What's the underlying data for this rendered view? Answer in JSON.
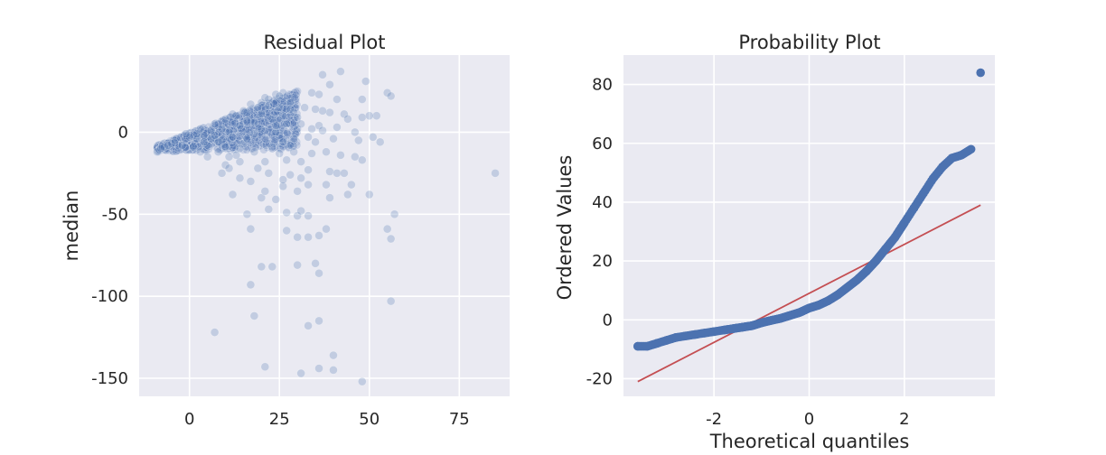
{
  "chart_data": [
    {
      "type": "scatter",
      "title": "Residual Plot",
      "xlabel": "",
      "ylabel": "median",
      "xlim": [
        -14,
        89
      ],
      "ylim": [
        -161,
        47
      ],
      "xticks": [
        0,
        25,
        50,
        75
      ],
      "yticks": [
        0,
        -50,
        -100,
        -150
      ],
      "xtick_labels": [
        "0",
        "25",
        "50",
        "75"
      ],
      "ytick_labels": [
        "0",
        "-50",
        "-100",
        "-150"
      ],
      "grid": true,
      "marker_color": "#4c72b0",
      "marker_alpha": 0.25,
      "dense_cloud": {
        "x_range": [
          -9,
          30
        ],
        "y_center": "0 to 25",
        "note_points_shown": 0
      },
      "points": [
        [
          85,
          -25
        ],
        [
          56,
          -103
        ],
        [
          57,
          -50
        ],
        [
          55,
          -59
        ],
        [
          56,
          -65
        ],
        [
          48,
          -152
        ],
        [
          40,
          -145
        ],
        [
          36,
          -144
        ],
        [
          31,
          -147
        ],
        [
          21,
          -143
        ],
        [
          7,
          -122
        ],
        [
          18,
          -112
        ],
        [
          33,
          -118
        ],
        [
          36,
          -115
        ],
        [
          40,
          -136
        ],
        [
          17,
          -93
        ],
        [
          20,
          -82
        ],
        [
          23,
          -82
        ],
        [
          30,
          -81
        ],
        [
          35,
          -80
        ],
        [
          36,
          -86
        ],
        [
          27,
          -60
        ],
        [
          30,
          -64
        ],
        [
          33,
          -64
        ],
        [
          36,
          -63
        ],
        [
          38,
          -59
        ],
        [
          17,
          -59
        ],
        [
          27,
          -49
        ],
        [
          30,
          -51
        ],
        [
          33,
          -51
        ],
        [
          31,
          -48
        ],
        [
          22,
          -47
        ],
        [
          16,
          -50
        ],
        [
          39,
          -40
        ],
        [
          45,
          -32
        ],
        [
          44,
          -38
        ],
        [
          50,
          -38
        ],
        [
          39,
          -24
        ],
        [
          41,
          -25
        ],
        [
          43,
          -25
        ],
        [
          48,
          -17
        ],
        [
          52,
          10
        ],
        [
          48,
          9
        ],
        [
          50,
          10
        ],
        [
          43,
          11
        ],
        [
          53,
          -6
        ],
        [
          51,
          -3
        ],
        [
          47,
          -5
        ],
        [
          55,
          24
        ],
        [
          56,
          22
        ],
        [
          49,
          31
        ],
        [
          48,
          20
        ],
        [
          42,
          37
        ],
        [
          37,
          35
        ],
        [
          34,
          24
        ],
        [
          36,
          23
        ],
        [
          39,
          29
        ],
        [
          41,
          20
        ],
        [
          39,
          12
        ],
        [
          37,
          13
        ],
        [
          35,
          14
        ],
        [
          36,
          4
        ],
        [
          40,
          -4
        ],
        [
          46,
          0
        ],
        [
          46,
          -15
        ],
        [
          34,
          -13
        ],
        [
          33,
          -23
        ],
        [
          30,
          -36
        ],
        [
          26,
          -33
        ],
        [
          26,
          -29
        ],
        [
          28,
          -26
        ],
        [
          31,
          -28
        ],
        [
          33,
          -32
        ],
        [
          38,
          -32
        ],
        [
          20,
          -40
        ],
        [
          21,
          -36
        ],
        [
          24,
          -41
        ],
        [
          12,
          -38
        ],
        [
          14,
          -28
        ],
        [
          17,
          -30
        ],
        [
          10,
          -20
        ],
        [
          9,
          -25
        ],
        [
          11,
          -22
        ],
        [
          14,
          -18
        ],
        [
          5,
          -15
        ],
        [
          3,
          -12
        ],
        [
          1,
          -9
        ],
        [
          -2,
          -8
        ],
        [
          -5,
          -7
        ],
        [
          -7,
          -9
        ],
        [
          -9,
          -12
        ],
        [
          -8,
          -10
        ],
        [
          -4,
          -5
        ],
        [
          -6,
          -8
        ],
        [
          20,
          18
        ],
        [
          22,
          20
        ],
        [
          24,
          23
        ],
        [
          26,
          24
        ],
        [
          25,
          15
        ],
        [
          28,
          18
        ],
        [
          29,
          12
        ],
        [
          30,
          9
        ],
        [
          27,
          5
        ],
        [
          24,
          0
        ],
        [
          23,
          -9
        ],
        [
          25,
          -13
        ],
        [
          21,
          -18
        ],
        [
          18,
          -12
        ],
        [
          15,
          -7
        ],
        [
          12,
          -3
        ],
        [
          9,
          2
        ],
        [
          6,
          1
        ],
        [
          4,
          -2
        ],
        [
          2,
          -4
        ],
        [
          0,
          -3
        ],
        [
          -1,
          -1
        ],
        [
          3,
          2
        ],
        [
          7,
          5
        ],
        [
          10,
          8
        ],
        [
          13,
          10
        ],
        [
          16,
          12
        ],
        [
          19,
          15
        ],
        [
          22,
          16
        ],
        [
          18,
          6
        ],
        [
          14,
          4
        ],
        [
          11,
          0
        ],
        [
          8,
          -6
        ],
        [
          5,
          -8
        ],
        [
          16,
          -4
        ],
        [
          20,
          2
        ],
        [
          23,
          8
        ],
        [
          26,
          10
        ],
        [
          28,
          14
        ],
        [
          19,
          -22
        ],
        [
          22,
          -25
        ],
        [
          27,
          -17
        ],
        [
          29,
          -4
        ],
        [
          30,
          2
        ],
        [
          15,
          13
        ],
        [
          12,
          11
        ],
        [
          17,
          17
        ],
        [
          21,
          21
        ],
        [
          25,
          22
        ],
        [
          13,
          -14
        ],
        [
          8,
          -12
        ],
        [
          6,
          -4
        ],
        [
          10,
          -9
        ],
        [
          18,
          -1
        ],
        [
          24,
          4
        ],
        [
          20,
          11
        ],
        [
          16,
          7
        ],
        [
          14,
          -10
        ],
        [
          11,
          -15
        ],
        [
          9,
          -5
        ],
        [
          7,
          -2
        ],
        [
          4,
          -6
        ],
        [
          2,
          -1
        ],
        [
          28,
          -8
        ],
        [
          31,
          5
        ],
        [
          32,
          15
        ],
        [
          33,
          -3
        ],
        [
          29,
          -12
        ],
        [
          26,
          -6
        ],
        [
          35,
          -6
        ],
        [
          31,
          -18
        ],
        [
          34,
          2
        ],
        [
          37,
          1
        ],
        [
          38,
          -12
        ],
        [
          42,
          -14
        ],
        [
          44,
          8
        ],
        [
          41,
          3
        ]
      ]
    },
    {
      "type": "scatter",
      "title": "Probability Plot",
      "xlabel": "Theoretical quantiles",
      "ylabel": "Ordered Values",
      "xlim": [
        -3.9,
        3.9
      ],
      "ylim": [
        -26,
        90
      ],
      "xticks": [
        -2,
        0,
        2
      ],
      "yticks": [
        -20,
        0,
        20,
        40,
        60,
        80
      ],
      "xtick_labels": [
        "-2",
        "0",
        "2"
      ],
      "ytick_labels": [
        "-20",
        "0",
        "20",
        "40",
        "60",
        "80"
      ],
      "grid": true,
      "marker_color": "#4c72b0",
      "line_color": "#c44e52",
      "fit_line": [
        [
          -3.6,
          -21
        ],
        [
          3.6,
          39
        ]
      ],
      "points": [
        [
          -3.6,
          -9
        ],
        [
          -3.4,
          -9
        ],
        [
          -3.2,
          -8
        ],
        [
          -3.0,
          -7
        ],
        [
          -2.8,
          -6
        ],
        [
          -2.6,
          -5.5
        ],
        [
          -2.4,
          -5
        ],
        [
          -2.2,
          -4.5
        ],
        [
          -2.0,
          -4
        ],
        [
          -1.8,
          -3.5
        ],
        [
          -1.6,
          -3
        ],
        [
          -1.4,
          -2.5
        ],
        [
          -1.2,
          -2
        ],
        [
          -1.0,
          -1
        ],
        [
          -0.8,
          -0.2
        ],
        [
          -0.6,
          0.5
        ],
        [
          -0.4,
          1.5
        ],
        [
          -0.2,
          2.5
        ],
        [
          0.0,
          4
        ],
        [
          0.2,
          5
        ],
        [
          0.4,
          6.5
        ],
        [
          0.6,
          8.5
        ],
        [
          0.8,
          11
        ],
        [
          1.0,
          13.5
        ],
        [
          1.2,
          16.5
        ],
        [
          1.4,
          20
        ],
        [
          1.6,
          24
        ],
        [
          1.8,
          28
        ],
        [
          2.0,
          33
        ],
        [
          2.2,
          38
        ],
        [
          2.4,
          43
        ],
        [
          2.6,
          48
        ],
        [
          2.8,
          52
        ],
        [
          3.0,
          55
        ],
        [
          3.2,
          56
        ],
        [
          3.4,
          58
        ],
        [
          3.6,
          84
        ]
      ]
    }
  ]
}
